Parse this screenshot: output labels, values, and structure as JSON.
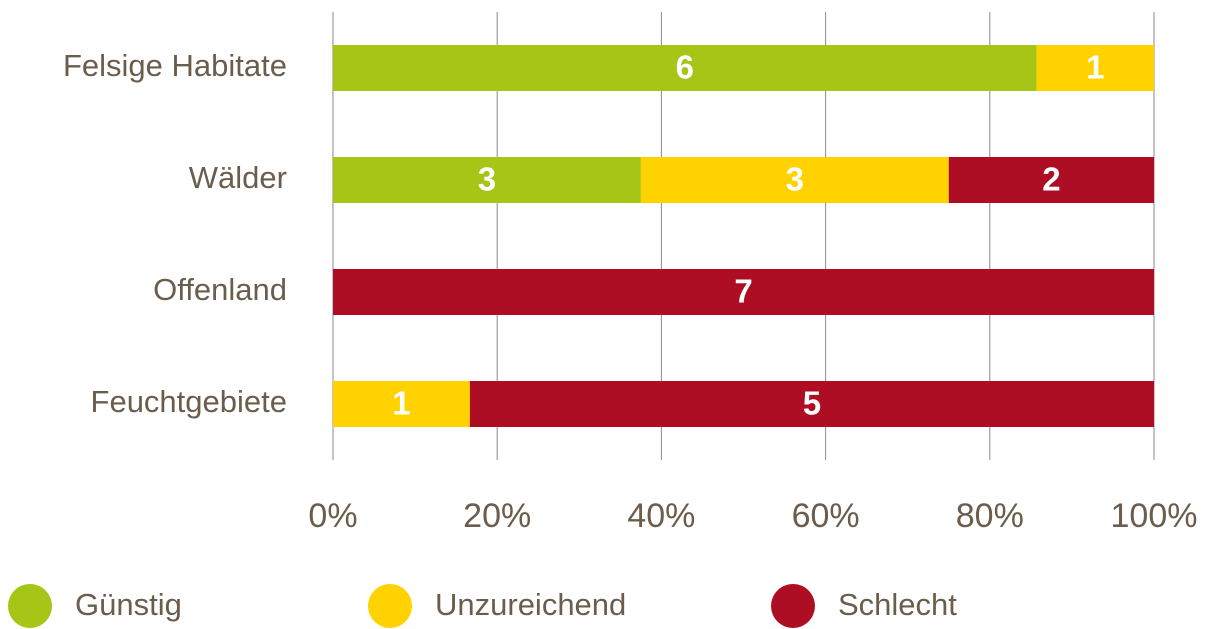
{
  "chart_data": {
    "type": "bar",
    "orientation": "horizontal",
    "stacking": "percent",
    "categories": [
      "Felsige Habitate",
      "Wälder",
      "Offenland",
      "Feuchtgebiete"
    ],
    "series": [
      {
        "name": "Günstig",
        "color": "#a5c617",
        "values": [
          6,
          3,
          0,
          0
        ]
      },
      {
        "name": "Unzureichend",
        "color": "#ffd200",
        "values": [
          1,
          3,
          0,
          1
        ]
      },
      {
        "name": "Schlecht",
        "color": "#ad0e23",
        "values": [
          0,
          2,
          7,
          5
        ]
      }
    ],
    "xlim": [
      0,
      100
    ],
    "xticks": [
      {
        "value": 0,
        "label": "0%"
      },
      {
        "value": 20,
        "label": "20%"
      },
      {
        "value": 40,
        "label": "40%"
      },
      {
        "value": 60,
        "label": "60%"
      },
      {
        "value": 80,
        "label": "80%"
      },
      {
        "value": 100,
        "label": "100%"
      }
    ],
    "grid": true,
    "legend": "bottom"
  }
}
